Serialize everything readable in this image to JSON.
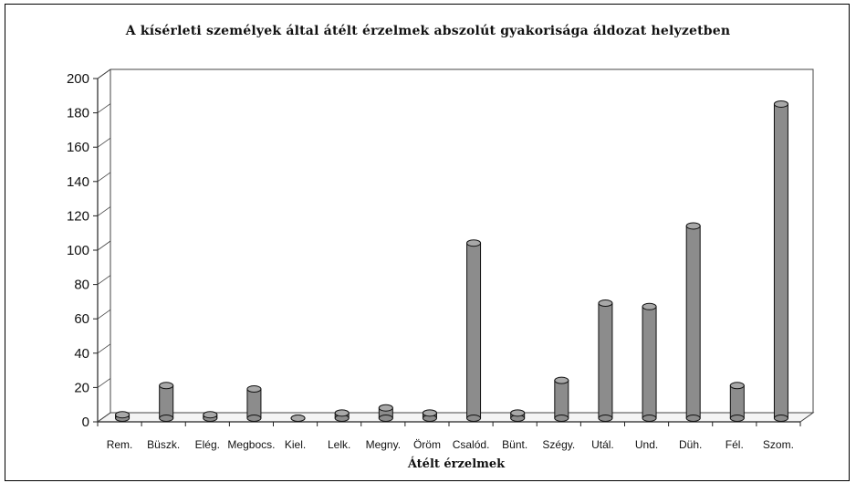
{
  "chart_data": {
    "type": "bar",
    "title": "A kísérleti személyek által átélt érzelmek abszolút gyakorisága áldozat helyzetben",
    "xlabel": "Átélt érzelmek",
    "ylabel": "",
    "ylim": [
      0,
      200
    ],
    "yticks": [
      0,
      20,
      40,
      60,
      80,
      100,
      120,
      140,
      160,
      180,
      200
    ],
    "grid": false,
    "categories": [
      "Rem.",
      "Büszk.",
      "Elég.",
      "Megbocs.",
      "Kiel.",
      "Lelk.",
      "Megny.",
      "Öröm",
      "Csalód.",
      "Bünt.",
      "Szégy.",
      "Utál.",
      "Und.",
      "Düh.",
      "Fél.",
      "Szom."
    ],
    "values": [
      2,
      19,
      2,
      17,
      0,
      3,
      6,
      3,
      102,
      3,
      22,
      67,
      65,
      112,
      19,
      183
    ],
    "bar_color": "#8c8c8c"
  }
}
